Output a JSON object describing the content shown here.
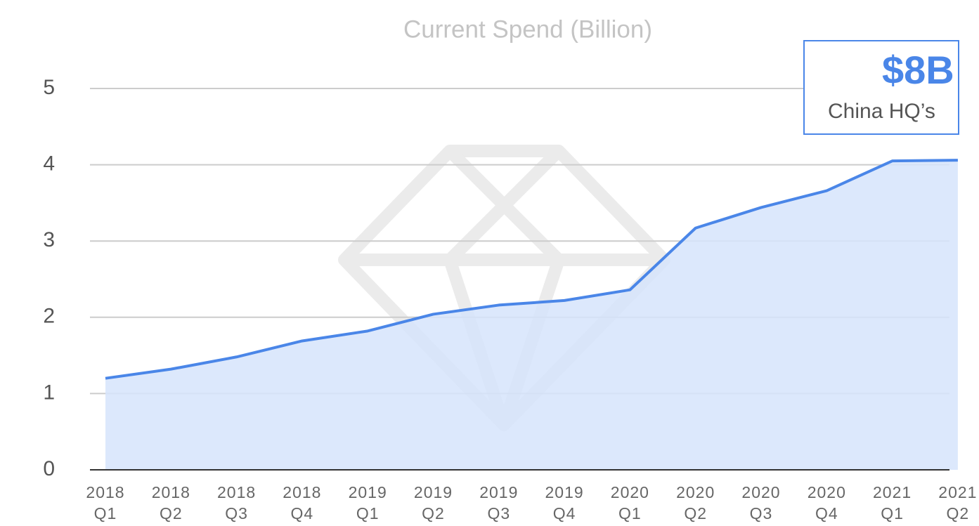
{
  "chart_data": {
    "type": "area",
    "title": "Current Spend (Billion)",
    "categories": [
      "2018 Q1",
      "2018 Q2",
      "2018 Q3",
      "2018 Q4",
      "2019 Q1",
      "2019 Q2",
      "2019 Q3",
      "2019 Q4",
      "2020 Q1",
      "2020 Q2",
      "2020 Q3",
      "2020 Q4",
      "2021 Q1",
      "2021 Q2"
    ],
    "values": [
      1.2,
      1.32,
      1.48,
      1.69,
      1.82,
      2.04,
      2.16,
      2.22,
      2.36,
      3.17,
      3.44,
      3.66,
      4.05,
      4.06
    ],
    "color": "#4a86e8",
    "fill": "#d6e4fb",
    "ylim": [
      0,
      5
    ],
    "yticks": [
      0,
      1,
      2,
      3,
      4,
      5
    ],
    "grid": true,
    "annotations": [
      "$8B",
      "China HQ’s"
    ]
  }
}
